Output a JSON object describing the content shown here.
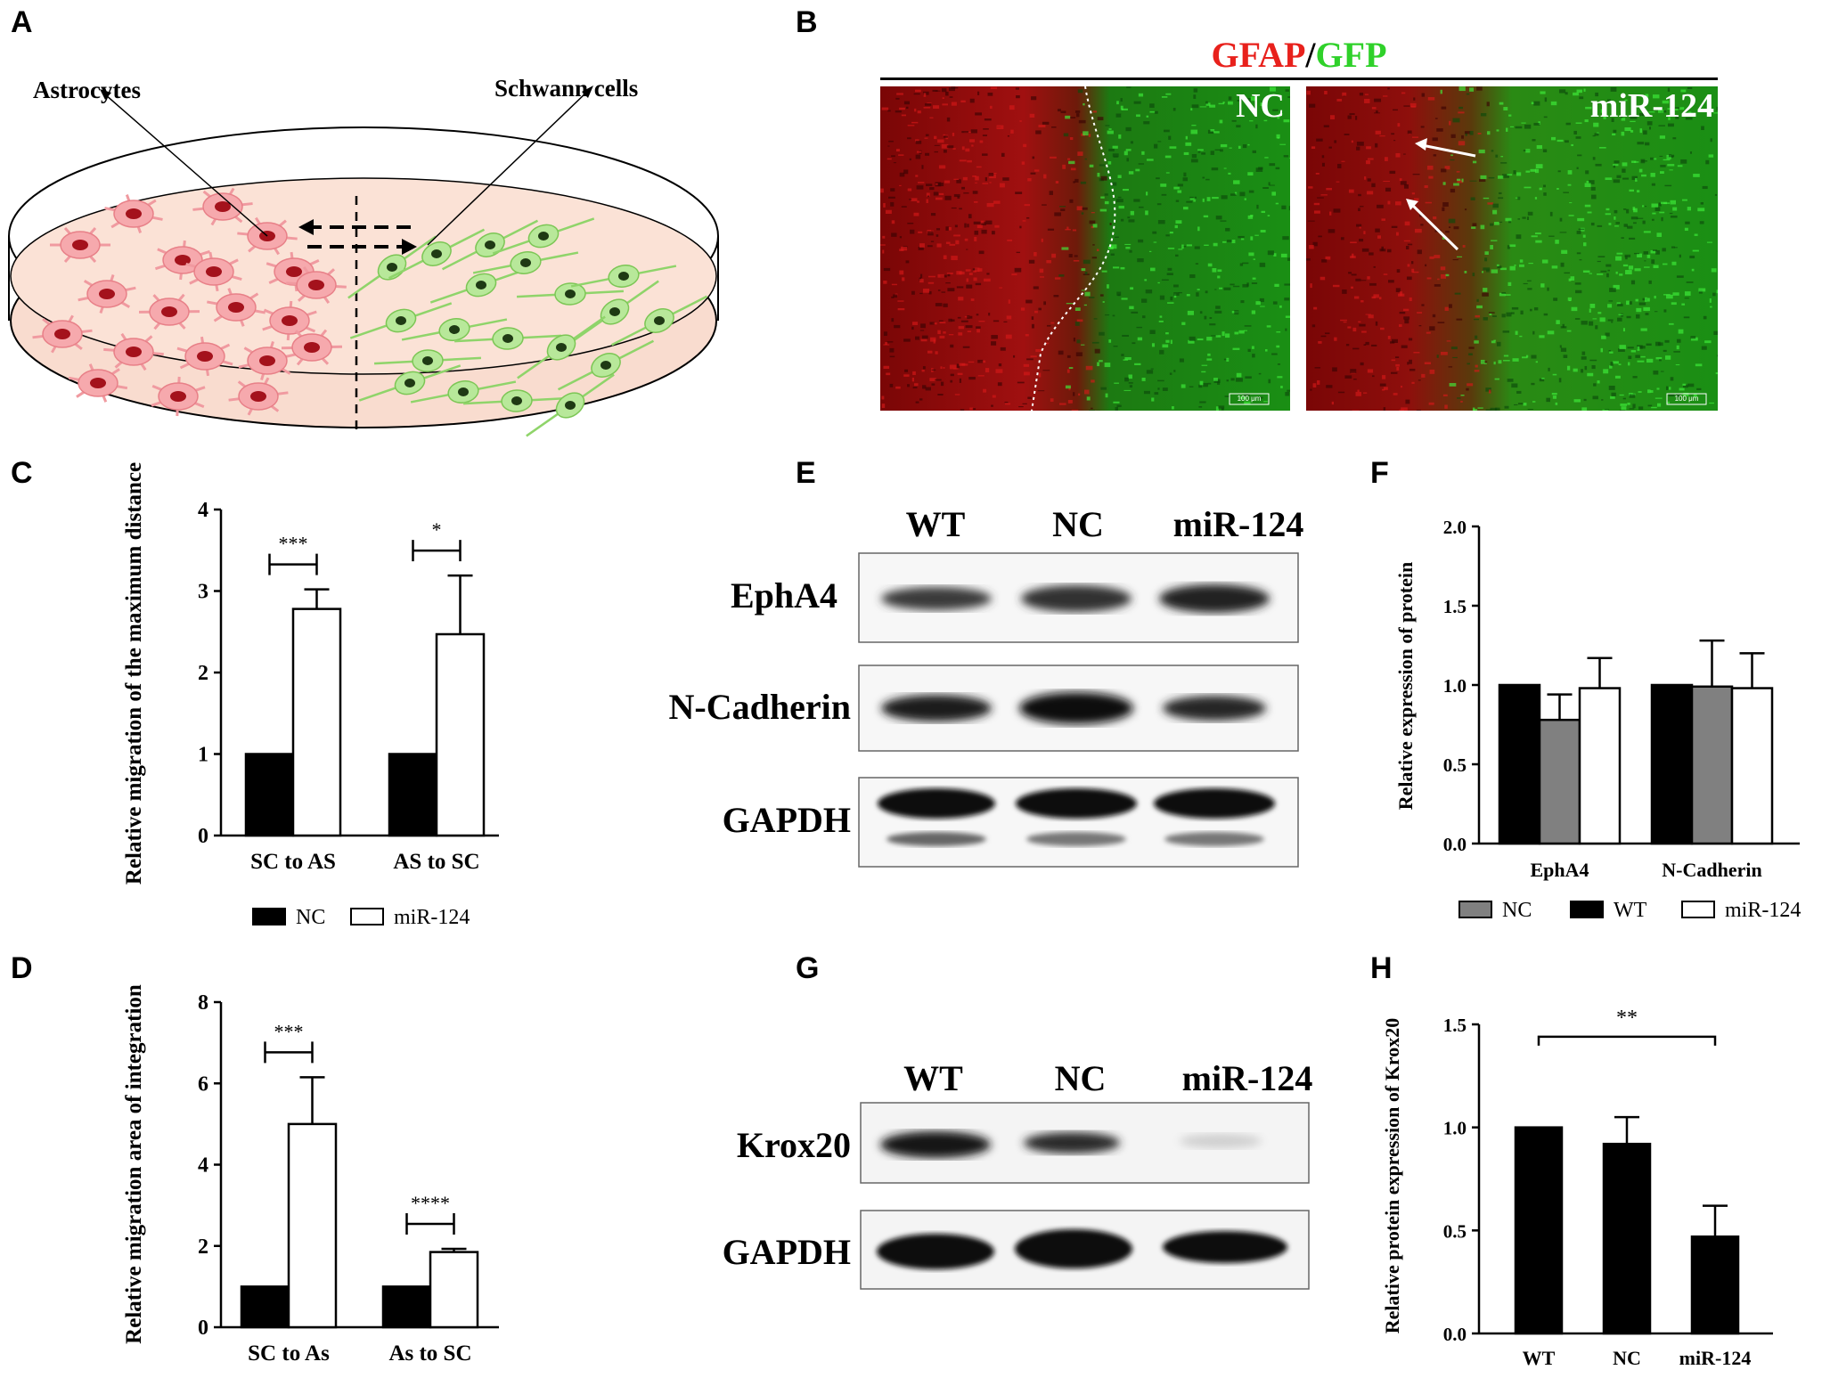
{
  "panels": {
    "A": {
      "label": "A",
      "astrocytes": "Astrocytes",
      "schwann": "Schwann cells"
    },
    "B": {
      "label": "B",
      "title_gfap": "GFAP",
      "title_sep": "/",
      "title_gfp": "GFP",
      "img1_label": "NC",
      "img2_label": "miR-124",
      "scale_bar": "100 μm"
    },
    "C": {
      "label": "C"
    },
    "D": {
      "label": "D"
    },
    "E": {
      "label": "E",
      "lanes": [
        "WT",
        "NC",
        "miR-124"
      ],
      "rows": [
        "EphA4",
        "N-Cadherin",
        "GAPDH"
      ]
    },
    "F": {
      "label": "F"
    },
    "G": {
      "label": "G",
      "lanes": [
        "WT",
        "NC",
        "miR-124"
      ],
      "rows": [
        "Krox20",
        "GAPDH"
      ]
    },
    "H": {
      "label": "H"
    }
  },
  "colors": {
    "gfap": "#e8211c",
    "gfp": "#2fd12a",
    "astro": "#f4a0a4",
    "schwann": "#8fd46a",
    "grey_bar": "#808080"
  },
  "chart_data": [
    {
      "id": "C",
      "type": "bar",
      "ylabel": "Relative migration of the maximum distance",
      "categories": [
        "SC to AS",
        "AS to SC"
      ],
      "ylim": [
        0,
        4
      ],
      "yticks": [
        "0",
        "1",
        "2",
        "3",
        "4"
      ],
      "series": [
        {
          "name": "NC",
          "values": [
            1.0,
            1.0
          ],
          "errors": [
            0,
            0
          ],
          "fill": "#000000"
        },
        {
          "name": "miR-124",
          "values": [
            2.78,
            2.47
          ],
          "errors": [
            0.24,
            0.72
          ],
          "fill": "#ffffff"
        }
      ],
      "significance": [
        "***",
        "*"
      ],
      "legend": [
        "NC",
        "miR-124"
      ]
    },
    {
      "id": "D",
      "type": "bar",
      "ylabel": "Relative migration area of integration",
      "categories": [
        "SC to As",
        "As to SC"
      ],
      "ylim": [
        0,
        8
      ],
      "yticks": [
        "0",
        "2",
        "4",
        "6",
        "8"
      ],
      "series": [
        {
          "name": "NC",
          "values": [
            1.0,
            1.0
          ],
          "errors": [
            0,
            0
          ],
          "fill": "#000000"
        },
        {
          "name": "miR-124",
          "values": [
            5.0,
            1.85
          ],
          "errors": [
            1.15,
            0.08
          ],
          "fill": "#ffffff"
        }
      ],
      "significance": [
        "***",
        "****"
      ]
    },
    {
      "id": "F",
      "type": "bar",
      "ylabel": "Relative expression of protein",
      "categories": [
        "EphA4",
        "N-Cadherin"
      ],
      "ylim": [
        0,
        2.0
      ],
      "yticks": [
        "0.0",
        "0.5",
        "1.0",
        "1.5",
        "2.0"
      ],
      "series": [
        {
          "name": "WT",
          "values": [
            1.0,
            1.0
          ],
          "errors": [
            0,
            0
          ],
          "fill": "#000000"
        },
        {
          "name": "NC",
          "values": [
            0.78,
            0.99
          ],
          "errors": [
            0.16,
            0.29
          ],
          "fill": "#808080"
        },
        {
          "name": "miR-124",
          "values": [
            0.98,
            0.98
          ],
          "errors": [
            0.19,
            0.22
          ],
          "fill": "#ffffff"
        }
      ],
      "legend": [
        "NC",
        "WT",
        "miR-124"
      ]
    },
    {
      "id": "H",
      "type": "bar",
      "ylabel": "Relative protein expression of Krox20",
      "categories": [
        "WT",
        "NC",
        "miR-124"
      ],
      "ylim": [
        0,
        1.5
      ],
      "yticks": [
        "0.0",
        "0.5",
        "1.0",
        "1.5"
      ],
      "series": [
        {
          "name": "Krox20",
          "values": [
            1.0,
            0.92,
            0.47
          ],
          "errors": [
            0,
            0.13,
            0.15
          ],
          "fill": "#000000"
        }
      ],
      "significance": [
        "**"
      ]
    }
  ]
}
